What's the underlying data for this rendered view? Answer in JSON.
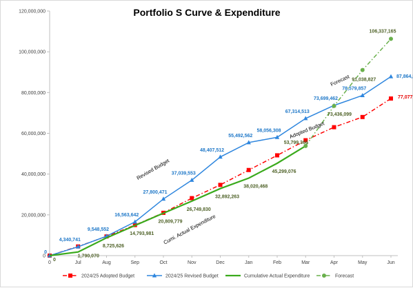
{
  "chart_data": {
    "type": "line",
    "title": "Portfolio S Curve & Expenditure",
    "categories": [
      "0",
      "Jul",
      "Aug",
      "Sep",
      "Oct",
      "Nov",
      "Dec",
      "Jan",
      "Feb",
      "Mar",
      "Apr",
      "May",
      "Jun"
    ],
    "y_ticks": [
      "0",
      "20,000,000",
      "40,000,000",
      "60,000,000",
      "80,000,000",
      "100,000,000",
      "120,000,000"
    ],
    "ylim": [
      0,
      120000000
    ],
    "grid": false,
    "legend_position": "bottom",
    "series": [
      {
        "name": "2024/25 Adopted Budget",
        "color": "#ff0000",
        "line_style": "dash-dot",
        "marker": "square",
        "values": [
          0,
          4500000,
          9400000,
          15000000,
          21000000,
          28200000,
          34700000,
          42000000,
          49200000,
          56600000,
          63000000,
          68000000,
          77077618
        ],
        "labels": [
          null,
          null,
          null,
          null,
          null,
          null,
          null,
          null,
          null,
          null,
          null,
          null,
          "77,077,618"
        ]
      },
      {
        "name": "2024/25 Revised Budget",
        "color": "#2e86de",
        "line_style": "solid",
        "marker": "triangle",
        "values": [
          0,
          4340741,
          9548552,
          16563642,
          27800471,
          37039553,
          48407512,
          55492562,
          58056308,
          67314513,
          73699462,
          78579857,
          87864539
        ],
        "labels": [
          "0",
          "4,340,741",
          "9,548,552",
          "16,563,642",
          "27,800,471",
          "37,039,553",
          "48,407,512",
          "55,492,562",
          "58,056,308",
          "67,314,513",
          "73,699,462",
          "78,579,857",
          "87,864,539"
        ]
      },
      {
        "name": "Cumulative Actual Expenditure",
        "color": "#3aaa1c",
        "line_style": "solid",
        "marker": "none",
        "values": [
          0,
          1790070,
          8725626,
          14793981,
          20809779,
          26749830,
          32892263,
          38020468,
          45299076,
          53799366,
          null,
          null,
          null
        ],
        "labels": [
          "0",
          "1,790,070",
          "8,725,626",
          "14,793,981",
          "20,809,779",
          "26,749,830",
          "32,892,263",
          "38,020,468",
          "45,299,076",
          "53,799,366",
          null,
          null,
          null
        ]
      },
      {
        "name": "Forecast",
        "color": "#6ab04c",
        "line_style": "dash-dot",
        "marker": "circle",
        "values": [
          null,
          null,
          null,
          null,
          null,
          null,
          null,
          null,
          null,
          53799366,
          73436099,
          91038827,
          106337165
        ],
        "labels": [
          null,
          null,
          null,
          null,
          null,
          null,
          null,
          null,
          null,
          null,
          "73,436,099",
          "91,038,827",
          "106,337,165"
        ]
      }
    ],
    "annotations": [
      {
        "text": "Revised Budget"
      },
      {
        "text": "Adopted Budget"
      },
      {
        "text": "Forecast"
      },
      {
        "text": "Cumi. Actual Expenditure"
      }
    ]
  }
}
